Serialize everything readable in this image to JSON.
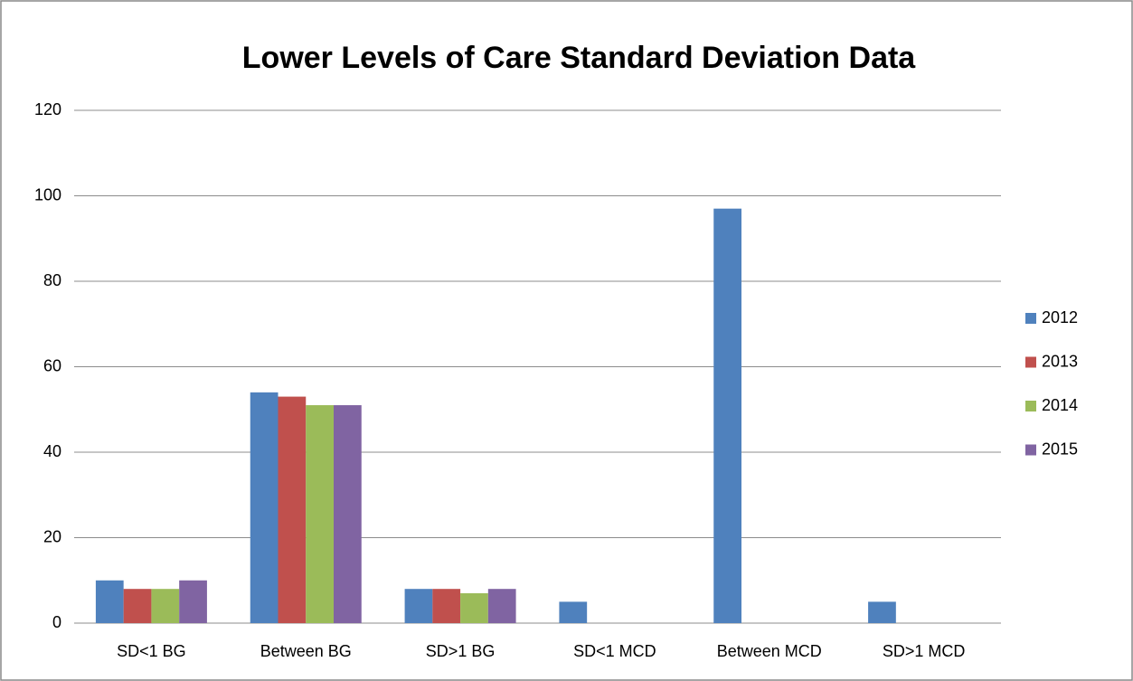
{
  "chart_data": {
    "type": "bar",
    "title": "Lower Levels of Care Standard Deviation Data",
    "categories": [
      "SD<1 BG",
      "Between BG",
      "SD>1 BG",
      "SD<1 MCD",
      "Between MCD",
      "SD>1 MCD"
    ],
    "series": [
      {
        "name": "2012",
        "color": "#4f81bd",
        "values": [
          10,
          54,
          8,
          5,
          97,
          5
        ]
      },
      {
        "name": "2013",
        "color": "#c0504d",
        "values": [
          8,
          53,
          8,
          0,
          0,
          0
        ]
      },
      {
        "name": "2014",
        "color": "#9bbb59",
        "values": [
          8,
          51,
          7,
          0,
          0,
          0
        ]
      },
      {
        "name": "2015",
        "color": "#8064a2",
        "values": [
          10,
          51,
          8,
          0,
          0,
          0
        ]
      }
    ],
    "ylim": [
      0,
      120
    ],
    "yticks": [
      0,
      20,
      40,
      60,
      80,
      100,
      120
    ],
    "grid": true,
    "legend": "right"
  }
}
